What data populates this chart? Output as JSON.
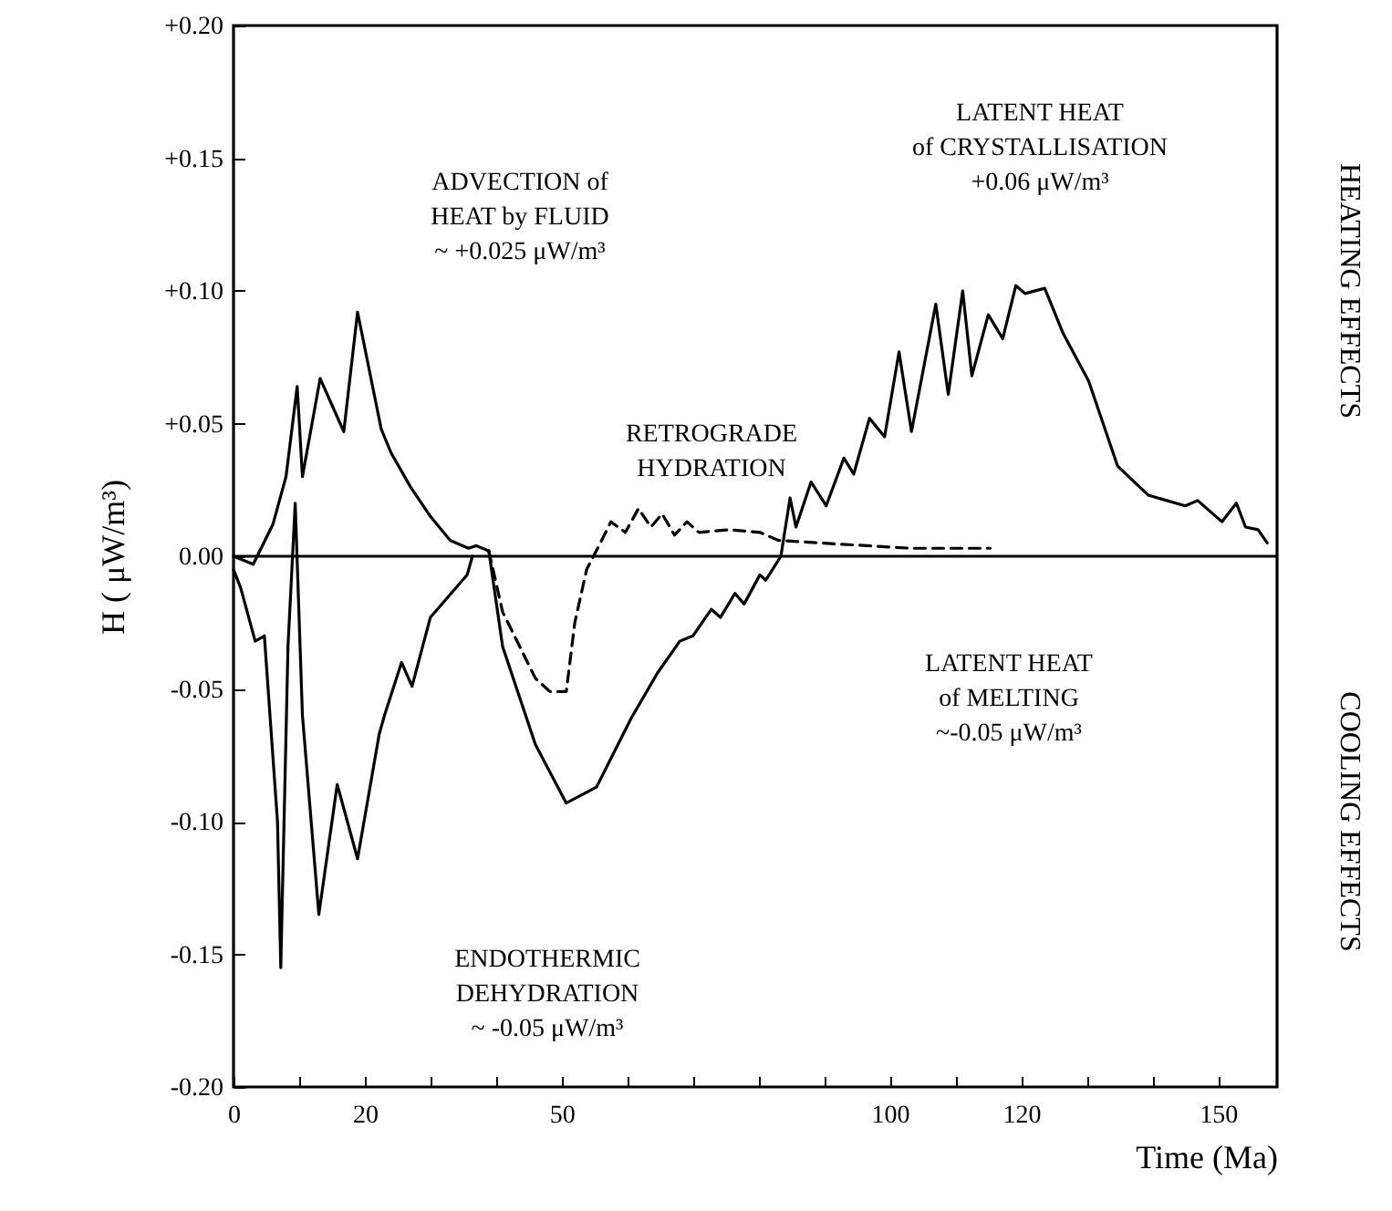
{
  "chart_data": {
    "type": "line",
    "xlabel": "Time (Ma)",
    "ylabel": "H ( μW/m³)",
    "xlim": [
      0,
      159
    ],
    "ylim": [
      -0.2,
      0.2
    ],
    "xticks": [
      0,
      {
        "value": 10,
        "label": null
      },
      20,
      {
        "value": 30,
        "label": null
      },
      {
        "value": 40,
        "label": null
      },
      50,
      {
        "value": 60,
        "label": null
      },
      {
        "value": 70,
        "label": null
      },
      {
        "value": 80,
        "label": null
      },
      {
        "value": 90,
        "label": null
      },
      100,
      {
        "value": 110,
        "label": null
      },
      120,
      {
        "value": 130,
        "label": null
      },
      {
        "value": 140,
        "label": null
      },
      150
    ],
    "yticks": [
      {
        "value": 0.2,
        "label": "+0.20"
      },
      {
        "value": 0.15,
        "label": "+0.15"
      },
      {
        "value": 0.1,
        "label": "+0.10"
      },
      {
        "value": 0.05,
        "label": "+0.05"
      },
      {
        "value": 0,
        "label": "0.00"
      },
      {
        "value": -0.05,
        "label": "-0.05"
      },
      {
        "value": -0.1,
        "label": "-0.10"
      },
      {
        "value": -0.15,
        "label": "-0.15"
      },
      {
        "value": -0.2,
        "label": "-0.20"
      }
    ],
    "grid": false,
    "ref_lines": [
      {
        "axis": "y",
        "value": 0,
        "color": "#000000"
      }
    ],
    "series": [
      {
        "color": "#000000",
        "line_style": "solid",
        "x": [
          0,
          3,
          6,
          8,
          9.7,
          10.5,
          13.2,
          16.8,
          18.9,
          22.5,
          24,
          27,
          30,
          33,
          35.8,
          37,
          38.9
        ],
        "values": [
          0,
          -0.003,
          0.012,
          0.03,
          0.064,
          0.03,
          0.067,
          0.047,
          0.092,
          0.048,
          0.039,
          0.026,
          0.015,
          0.006,
          0.003,
          0.004,
          0.002
        ]
      },
      {
        "color": "#000000",
        "line_style": "solid",
        "x": [
          0,
          1.1,
          3.3,
          4.7,
          6.7,
          7.2,
          8.3,
          9.4,
          10.5,
          13,
          15.8,
          18.9,
          22.2,
          23,
          25.6,
          27.2,
          30,
          35.6,
          36.4
        ],
        "values": [
          -0.005,
          -0.012,
          -0.032,
          -0.03,
          -0.1,
          -0.155,
          -0.034,
          0.02,
          -0.06,
          -0.135,
          -0.086,
          -0.114,
          -0.067,
          -0.06,
          -0.04,
          -0.049,
          -0.023,
          -0.007,
          0
        ]
      },
      {
        "color": "#000000",
        "line_style": "solid",
        "x": [
          38.9,
          41,
          46,
          50.7,
          55.3,
          60.6,
          64.6,
          68,
          70,
          72.8,
          74.2,
          76.4,
          77.8,
          80.2,
          81.1,
          83.4,
          84.8,
          85.7,
          88,
          90.3,
          93,
          94.5,
          96.9,
          99.2,
          101.4,
          103.3,
          107,
          108.9,
          111.1,
          112.5,
          115,
          117.2,
          119.2,
          120.6,
          123.6,
          126.4,
          130.3,
          134.7,
          139.4,
          145,
          146.9,
          150.6,
          152.8,
          154.2,
          156.1,
          157.5
        ],
        "values": [
          0.002,
          -0.034,
          -0.071,
          -0.093,
          -0.087,
          -0.061,
          -0.044,
          -0.032,
          -0.03,
          -0.02,
          -0.023,
          -0.014,
          -0.018,
          -0.007,
          -0.009,
          0,
          0.022,
          0.011,
          0.028,
          0.019,
          0.037,
          0.031,
          0.052,
          0.045,
          0.077,
          0.047,
          0.095,
          0.061,
          0.1,
          0.068,
          0.091,
          0.082,
          0.102,
          0.099,
          0.101,
          0.084,
          0.066,
          0.034,
          0.023,
          0.019,
          0.021,
          0.013,
          0.02,
          0.011,
          0.01,
          0.005
        ]
      },
      {
        "color": "#000000",
        "line_style": "dashed",
        "x": [
          38.9,
          41,
          46,
          48.2,
          50.7,
          52,
          53.8,
          56.1,
          57.5,
          59.7,
          61.7,
          63.6,
          65.3,
          67.2,
          69.1,
          70.9,
          75.6,
          80.2,
          83,
          89.4,
          103.3,
          115.3
        ],
        "values": [
          0.002,
          -0.021,
          -0.046,
          -0.051,
          -0.051,
          -0.025,
          -0.005,
          0.006,
          0.013,
          0.009,
          0.018,
          0.011,
          0.016,
          0.008,
          0.013,
          0.009,
          0.01,
          0.009,
          0.006,
          0.005,
          0.003,
          0.003
        ]
      }
    ],
    "annotations": [
      "ADVECTION of\nHEAT by FLUID\n~ +0.025 μW/m³",
      "LATENT HEAT\nof CRYSTALLISATION\n+0.06  μW/m³",
      "RETROGRADE\nHYDRATION",
      "LATENT HEAT\nof MELTING\n~-0.05  μW/m³",
      "ENDOTHERMIC\nDEHYDRATION\n~ -0.05 μW/m³",
      "HEATING EFFECTS",
      "COOLING EFFECTS"
    ]
  }
}
